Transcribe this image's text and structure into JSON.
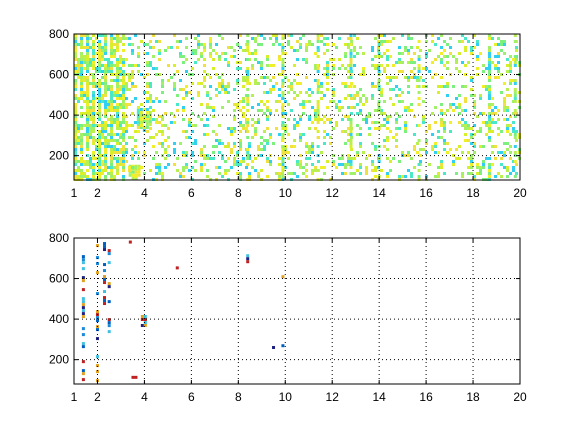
{
  "chart_data": [
    {
      "type": "heatmap",
      "title": "",
      "xlabel": "",
      "ylabel": "",
      "xlim": [
        1,
        20
      ],
      "ylim": [
        80,
        800
      ],
      "grid": true,
      "x_ticks": [
        1,
        2,
        4,
        6,
        8,
        10,
        12,
        14,
        16,
        18,
        20
      ],
      "y_ticks": [
        200,
        400,
        600,
        800
      ],
      "x_tick_labels": [
        "1",
        "2",
        "4",
        "6",
        "8",
        "10",
        "12",
        "14",
        "16",
        "18",
        "20"
      ],
      "y_tick_labels": [
        "200",
        "400",
        "600",
        "800"
      ],
      "colors": [
        "#d8f02a",
        "#b8f050",
        "#f0f028",
        "#7cf07c",
        "#48e8c8",
        "#30d0f0",
        "#f0e040",
        "#a0f068"
      ],
      "features": [
        {
          "kind": "dense_band",
          "x": [
            1.0,
            3.3
          ],
          "y": [
            80,
            800
          ],
          "density": 0.85
        },
        {
          "kind": "blob",
          "x": 3.9,
          "y": 390,
          "rx": 0.35,
          "ry": 60,
          "density": 0.9
        },
        {
          "kind": "blob",
          "x": 3.5,
          "y": 130,
          "rx": 0.3,
          "ry": 40,
          "density": 0.9
        },
        {
          "kind": "scatter_region",
          "x": [
            3.3,
            20.0
          ],
          "y": [
            80,
            800
          ],
          "density": 0.22
        },
        {
          "kind": "column",
          "x": 8.4,
          "y": [
            80,
            800
          ],
          "density": 0.6
        },
        {
          "kind": "column",
          "x": 9.9,
          "y": [
            80,
            800
          ],
          "density": 0.65
        },
        {
          "kind": "column",
          "x": 11.4,
          "y": [
            80,
            800
          ],
          "density": 0.5
        },
        {
          "kind": "column",
          "x": 12.8,
          "y": [
            80,
            800
          ],
          "density": 0.5
        },
        {
          "kind": "column",
          "x": 14.0,
          "y": [
            80,
            800
          ],
          "density": 0.45
        },
        {
          "kind": "column",
          "x": 15.7,
          "y": [
            80,
            800
          ],
          "density": 0.4
        },
        {
          "kind": "column",
          "x": 18.7,
          "y": [
            80,
            800
          ],
          "density": 0.45
        },
        {
          "kind": "column",
          "x": 19.8,
          "y": [
            80,
            800
          ],
          "density": 0.4
        }
      ]
    },
    {
      "type": "heatmap",
      "title": "",
      "xlabel": "",
      "ylabel": "",
      "xlim": [
        1,
        20
      ],
      "ylim": [
        80,
        800
      ],
      "grid": true,
      "x_ticks": [
        1,
        2,
        4,
        6,
        8,
        10,
        12,
        14,
        16,
        18,
        20
      ],
      "y_ticks": [
        200,
        400,
        600,
        800
      ],
      "x_tick_labels": [
        "1",
        "2",
        "4",
        "6",
        "8",
        "10",
        "12",
        "14",
        "16",
        "18",
        "20"
      ],
      "y_tick_labels": [
        "200",
        "400",
        "600",
        "800"
      ],
      "colors": [
        "#0060c0",
        "#1a8ad8",
        "#c02020",
        "#e0a020",
        "#40c0e0",
        "#202080"
      ],
      "features": [
        {
          "kind": "column",
          "x": 1.4,
          "y": [
            80,
            760
          ],
          "density": 0.35
        },
        {
          "kind": "column",
          "x": 2.0,
          "y": [
            80,
            770
          ],
          "density": 0.4
        },
        {
          "kind": "column",
          "x": 2.3,
          "y": [
            480,
            780
          ],
          "density": 0.35
        },
        {
          "kind": "column",
          "x": 2.5,
          "y": [
            300,
            760
          ],
          "density": 0.3
        },
        {
          "kind": "blob",
          "x": 3.9,
          "y": 400,
          "rx": 0.18,
          "ry": 35,
          "density": 0.9
        },
        {
          "kind": "blob",
          "x": 3.5,
          "y": 125,
          "rx": 0.18,
          "ry": 10,
          "density": 0.9
        },
        {
          "kind": "segment",
          "x": 8.4,
          "y": [
            680,
            720
          ],
          "density": 0.9
        },
        {
          "kind": "segment",
          "x": 5.4,
          "y": [
            640,
            660
          ],
          "density": 0.9
        },
        {
          "kind": "segment",
          "x": 9.9,
          "y": [
            120,
            720
          ],
          "density": 0.12
        },
        {
          "kind": "point",
          "x": 9.5,
          "y": 260,
          "density": 1.0
        },
        {
          "kind": "point",
          "x": 3.4,
          "y": 780,
          "density": 1.0
        }
      ]
    }
  ]
}
